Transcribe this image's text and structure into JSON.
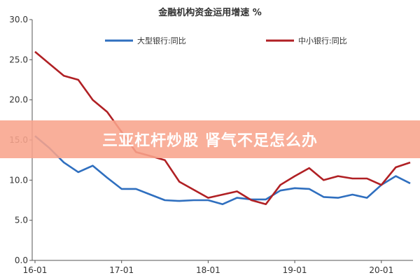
{
  "chart_data": {
    "type": "line",
    "title": "金融机构资金运用增速 %",
    "xlabel": "",
    "ylabel": "",
    "x": [
      "16-01",
      "16-03",
      "16-05",
      "16-07",
      "16-09",
      "16-11",
      "17-01",
      "17-03",
      "17-05",
      "17-07",
      "17-09",
      "17-11",
      "18-01",
      "18-03",
      "18-05",
      "18-07",
      "18-09",
      "18-11",
      "19-01",
      "19-03",
      "19-05",
      "19-07",
      "19-09",
      "19-11",
      "20-01",
      "20-03",
      "20-05"
    ],
    "xticks": [
      "16-01",
      "17-01",
      "18-01",
      "19-01",
      "20-01"
    ],
    "ylim": [
      0,
      30
    ],
    "yticks": [
      "0.0",
      "5.0",
      "10.0",
      "15.0",
      "20.0",
      "25.0",
      "30.0"
    ],
    "grid": false,
    "legend_position": "top",
    "series": [
      {
        "name": "大型银行:同比",
        "color": "#2f6fbf",
        "values": [
          15.5,
          14.0,
          12.2,
          11.0,
          11.8,
          10.3,
          8.9,
          8.9,
          8.2,
          7.5,
          7.4,
          7.5,
          7.5,
          7.0,
          7.8,
          7.6,
          7.6,
          8.7,
          9.0,
          8.9,
          7.9,
          7.8,
          8.2,
          7.8,
          9.4,
          10.5,
          9.6
        ]
      },
      {
        "name": "中小银行:同比",
        "color": "#b02024",
        "values": [
          26.0,
          24.5,
          23.0,
          22.5,
          20.0,
          18.5,
          16.0,
          13.5,
          13.0,
          12.5,
          9.8,
          8.8,
          7.8,
          8.2,
          8.6,
          7.5,
          7.0,
          9.4,
          10.5,
          11.5,
          10.0,
          10.5,
          10.2,
          10.2,
          9.4,
          11.6,
          12.2
        ]
      }
    ]
  },
  "banner": {
    "text": "三亚杠杆炒股 肾气不足怎么办",
    "background": "#f8a48c"
  }
}
